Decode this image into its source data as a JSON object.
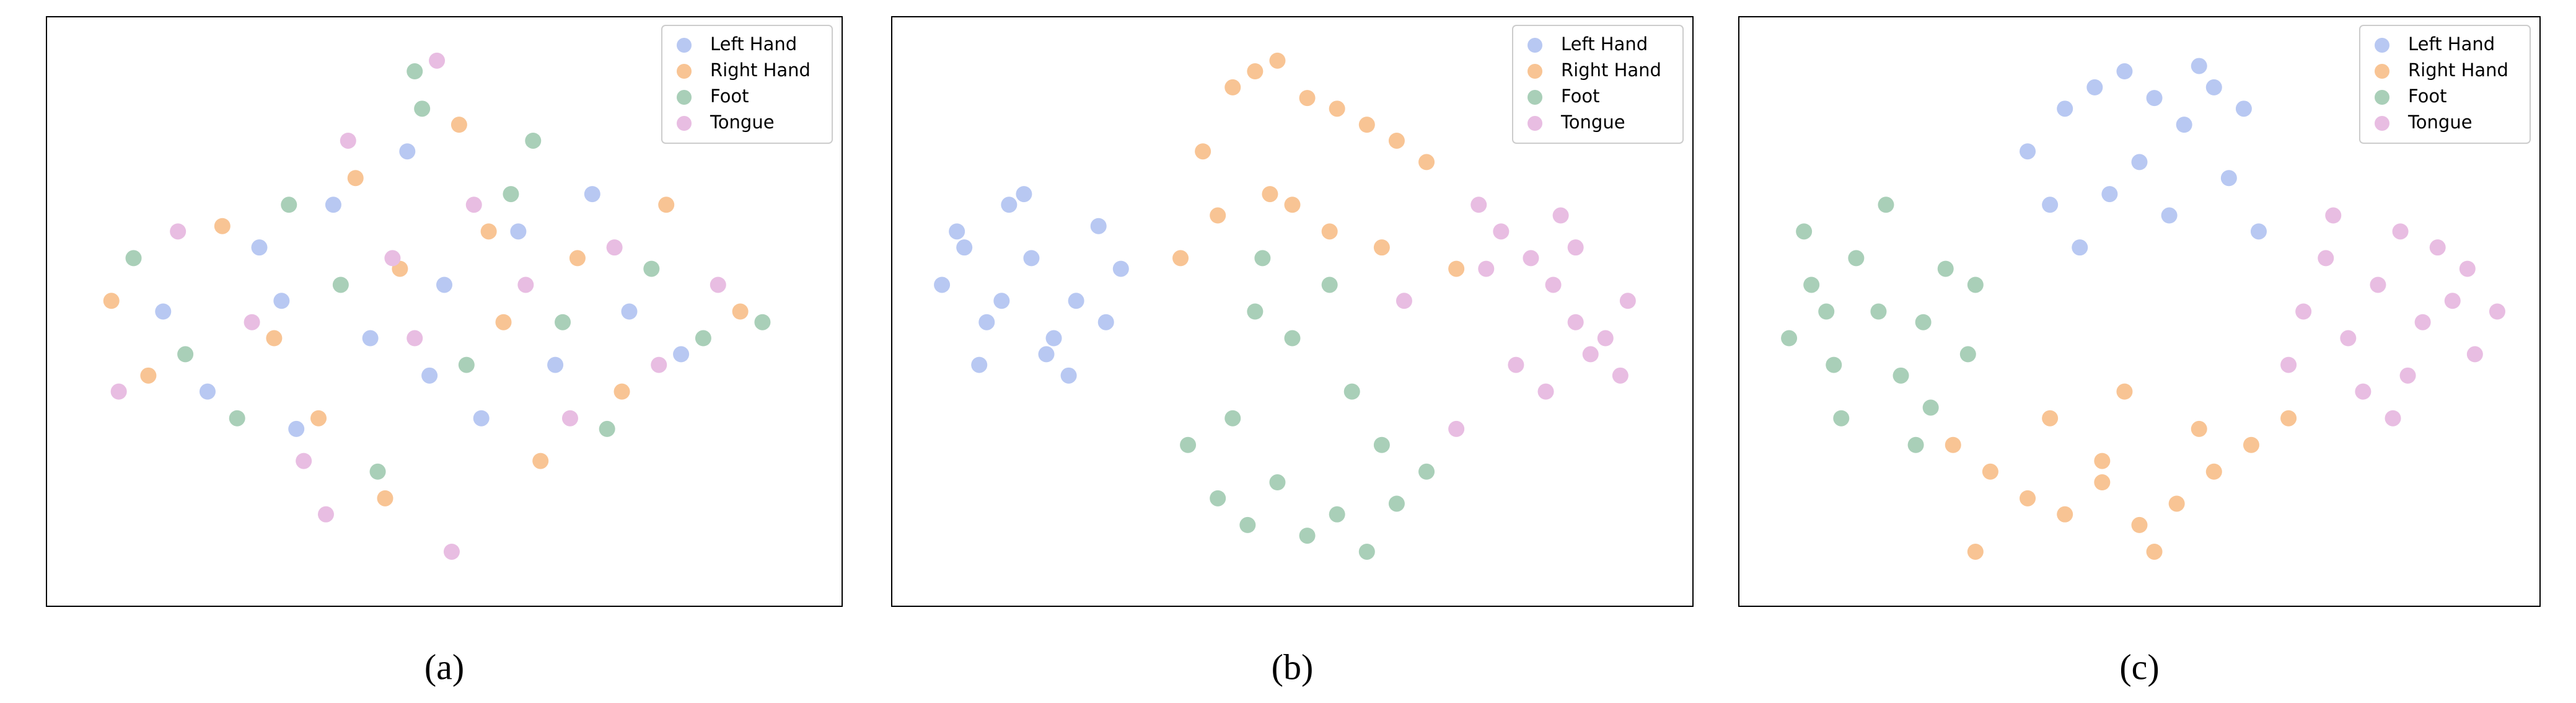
{
  "chart_data": [
    {
      "type": "scatter",
      "caption": "(a)",
      "xlim": [
        0,
        100
      ],
      "ylim": [
        0,
        100
      ],
      "legend": "upper right",
      "series": [
        {
          "name": "Left Hand",
          "color": "#b8c8f2",
          "x": [
            12,
            18,
            25,
            30,
            35,
            40,
            45,
            50,
            55,
            60,
            65,
            70,
            75,
            82,
            28,
            48
          ],
          "y": [
            50,
            35,
            62,
            28,
            70,
            45,
            80,
            55,
            30,
            65,
            40,
            72,
            50,
            42,
            52,
            38
          ]
        },
        {
          "name": "Right Hand",
          "color": "#f8c494",
          "x": [
            5,
            10,
            20,
            27,
            33,
            38,
            44,
            52,
            58,
            63,
            68,
            74,
            80,
            90,
            42,
            56
          ],
          "y": [
            52,
            38,
            66,
            45,
            30,
            75,
            58,
            85,
            48,
            22,
            60,
            35,
            70,
            50,
            15,
            65
          ]
        },
        {
          "name": "Foot",
          "color": "#a9cfb8",
          "x": [
            8,
            15,
            22,
            29,
            36,
            41,
            47,
            53,
            59,
            66,
            72,
            78,
            85,
            93,
            46,
            62
          ],
          "y": [
            60,
            42,
            30,
            70,
            55,
            20,
            88,
            40,
            72,
            48,
            28,
            58,
            45,
            48,
            95,
            82
          ]
        },
        {
          "name": "Tongue",
          "color": "#e8bde2",
          "x": [
            6,
            14,
            24,
            31,
            37,
            43,
            49,
            54,
            61,
            67,
            73,
            79,
            87,
            51,
            34,
            46
          ],
          "y": [
            35,
            65,
            48,
            22,
            82,
            60,
            97,
            70,
            55,
            30,
            62,
            40,
            55,
            5,
            12,
            45
          ]
        }
      ]
    },
    {
      "type": "scatter",
      "caption": "(b)",
      "xlim": [
        0,
        100
      ],
      "ylim": [
        0,
        100
      ],
      "legend": "upper right",
      "series": [
        {
          "name": "Left Hand",
          "color": "#b8c8f2",
          "x": [
            3,
            6,
            9,
            12,
            15,
            18,
            21,
            24,
            27,
            8,
            14,
            20,
            25,
            5,
            11,
            17
          ],
          "y": [
            55,
            62,
            48,
            70,
            60,
            45,
            52,
            66,
            58,
            40,
            72,
            38,
            48,
            65,
            52,
            42
          ]
        },
        {
          "name": "Right Hand",
          "color": "#f8c494",
          "x": [
            38,
            42,
            45,
            48,
            52,
            56,
            60,
            64,
            68,
            35,
            40,
            47,
            55,
            62,
            72,
            50
          ],
          "y": [
            80,
            92,
            95,
            97,
            90,
            88,
            85,
            82,
            78,
            60,
            68,
            72,
            65,
            62,
            58,
            70
          ]
        },
        {
          "name": "Foot",
          "color": "#a9cfb8",
          "x": [
            40,
            44,
            48,
            52,
            56,
            60,
            64,
            68,
            45,
            50,
            55,
            36,
            42,
            58,
            62,
            46
          ],
          "y": [
            15,
            10,
            18,
            8,
            12,
            5,
            14,
            20,
            50,
            45,
            55,
            25,
            30,
            35,
            25,
            60
          ]
        },
        {
          "name": "Tongue",
          "color": "#e8bde2",
          "x": [
            75,
            78,
            82,
            85,
            88,
            92,
            95,
            80,
            84,
            90,
            76,
            86,
            94,
            65,
            72,
            88
          ],
          "y": [
            70,
            65,
            60,
            55,
            48,
            45,
            52,
            40,
            35,
            42,
            58,
            68,
            38,
            52,
            28,
            62
          ]
        }
      ]
    },
    {
      "type": "scatter",
      "caption": "(c)",
      "xlim": [
        0,
        100
      ],
      "ylim": [
        0,
        100
      ],
      "legend": "upper right",
      "series": [
        {
          "name": "Left Hand",
          "color": "#b8c8f2",
          "x": [
            35,
            40,
            44,
            48,
            52,
            56,
            60,
            64,
            38,
            46,
            54,
            62,
            42,
            50,
            58,
            66
          ],
          "y": [
            80,
            88,
            92,
            95,
            90,
            85,
            92,
            88,
            70,
            72,
            68,
            75,
            62,
            78,
            96,
            65
          ]
        },
        {
          "name": "Right Hand",
          "color": "#f8c494",
          "x": [
            25,
            30,
            35,
            40,
            45,
            50,
            55,
            60,
            65,
            70,
            38,
            48,
            58,
            28,
            52,
            45
          ],
          "y": [
            25,
            20,
            15,
            12,
            18,
            10,
            14,
            20,
            25,
            30,
            30,
            35,
            28,
            5,
            5,
            22
          ]
        },
        {
          "name": "Foot",
          "color": "#a9cfb8",
          "x": [
            3,
            6,
            9,
            12,
            15,
            18,
            21,
            24,
            27,
            5,
            10,
            16,
            22,
            28,
            8,
            20
          ],
          "y": [
            45,
            55,
            40,
            60,
            50,
            38,
            48,
            58,
            42,
            65,
            30,
            70,
            32,
            55,
            50,
            25
          ]
        },
        {
          "name": "Tongue",
          "color": "#e8bde2",
          "x": [
            72,
            75,
            78,
            82,
            85,
            88,
            92,
            95,
            98,
            80,
            86,
            90,
            76,
            84,
            94,
            70
          ],
          "y": [
            50,
            60,
            45,
            55,
            65,
            48,
            52,
            42,
            50,
            35,
            38,
            62,
            68,
            30,
            58,
            40
          ]
        }
      ]
    }
  ]
}
